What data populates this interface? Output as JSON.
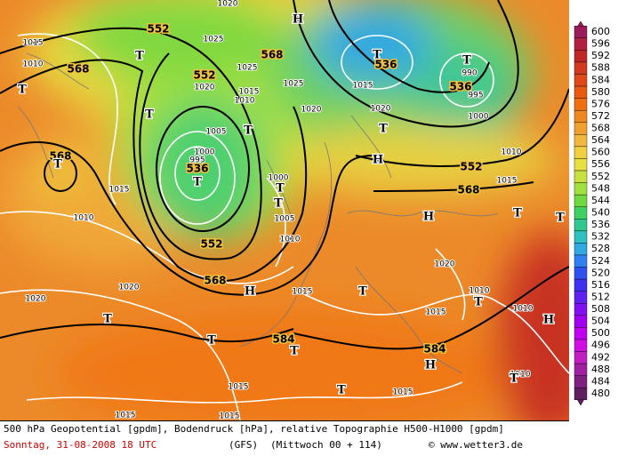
{
  "map": {
    "geopotential_labels": [
      "552",
      "568",
      "552",
      "568",
      "536",
      "552",
      "568",
      "568",
      "536",
      "536",
      "552",
      "568",
      "584",
      "584"
    ],
    "pressure_labels": [
      "1015",
      "1010",
      "1025",
      "1025",
      "1020",
      "1015",
      "1010",
      "1025",
      "1020",
      "1005",
      "1000",
      "995",
      "1000",
      "1005",
      "1010",
      "1015",
      "1010",
      "1020",
      "1020",
      "1015",
      "1020",
      "1015",
      "1010",
      "1010",
      "1015",
      "1015",
      "1015",
      "1015",
      "1010",
      "1000",
      "995",
      "990",
      "1010",
      "1015",
      "1020",
      "1015",
      "1020"
    ],
    "markers": [
      "H",
      "T",
      "T",
      "T",
      "T",
      "T",
      "T",
      "T",
      "T",
      "T",
      "T",
      "H",
      "H",
      "T",
      "T",
      "H",
      "T",
      "T",
      "T",
      "T",
      "T",
      "H",
      "T",
      "T",
      "H",
      "T"
    ]
  },
  "legend": {
    "values": [
      600,
      596,
      592,
      588,
      584,
      580,
      576,
      572,
      568,
      564,
      560,
      556,
      552,
      548,
      544,
      540,
      536,
      532,
      528,
      524,
      520,
      516,
      512,
      508,
      504,
      500,
      496,
      492,
      488,
      484,
      480
    ]
  },
  "footer": {
    "description": "500 hPa Geopotential [gpdm], Bodendruck [hPa], relative Topographie H500-H1000 [gpdm]",
    "date": "Sonntag, 31-08-2008  18 UTC",
    "model": "(GFS)",
    "run": "(Mittwoch 00 + 114)",
    "credit": "© www.wetter3.de"
  }
}
